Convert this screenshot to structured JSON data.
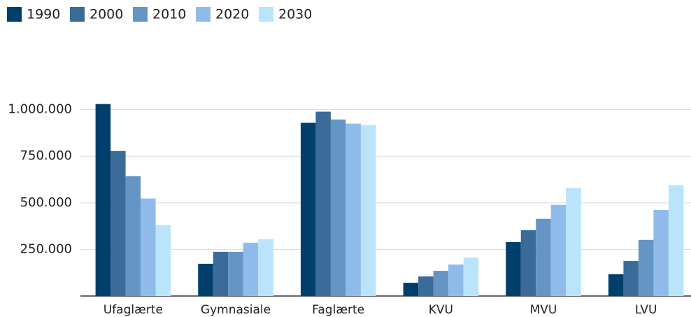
{
  "chart_data": {
    "type": "bar",
    "categories": [
      "Ufaglærte",
      "Gymnasiale",
      "Faglærte",
      "KVU",
      "MVU",
      "LVU"
    ],
    "series": [
      {
        "name": "1990",
        "color": "#003f6b",
        "values": [
          1030000,
          173000,
          929000,
          71000,
          289000,
          117000
        ]
      },
      {
        "name": "2000",
        "color": "#3b6b99",
        "values": [
          778000,
          237000,
          989000,
          105000,
          353000,
          188000
        ]
      },
      {
        "name": "2010",
        "color": "#6595c5",
        "values": [
          643000,
          237000,
          947000,
          135000,
          414000,
          301000
        ]
      },
      {
        "name": "2020",
        "color": "#8fbbea",
        "values": [
          523000,
          286000,
          925000,
          169000,
          489000,
          462000
        ]
      },
      {
        "name": "2030",
        "color": "#b9e4fb",
        "values": [
          380000,
          305000,
          917000,
          207000,
          579000,
          594000
        ]
      }
    ],
    "ylim": [
      0,
      1100000
    ],
    "yticks": [
      {
        "value": 250000,
        "label": "250.000"
      },
      {
        "value": 500000,
        "label": "500.000"
      },
      {
        "value": 750000,
        "label": "750.000"
      },
      {
        "value": 1000000,
        "label": "1.000.000"
      }
    ],
    "grid": true,
    "legend": "top-left"
  }
}
